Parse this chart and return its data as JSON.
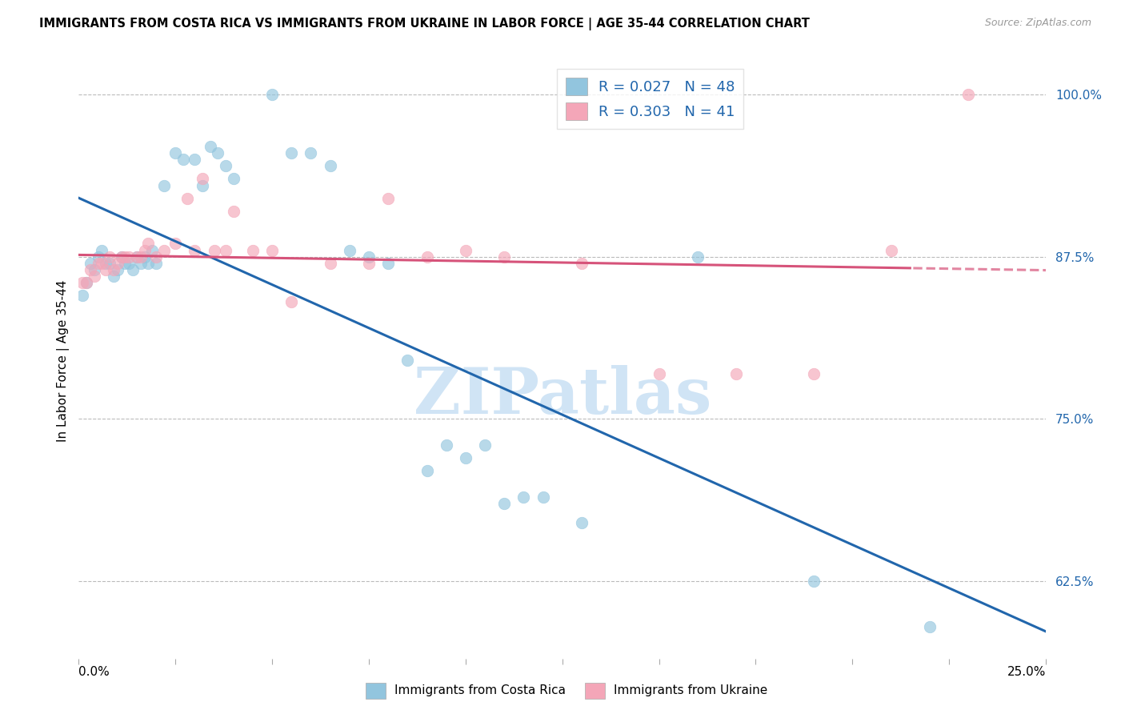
{
  "title": "IMMIGRANTS FROM COSTA RICA VS IMMIGRANTS FROM UKRAINE IN LABOR FORCE | AGE 35-44 CORRELATION CHART",
  "source": "Source: ZipAtlas.com",
  "ylabel": "In Labor Force | Age 35-44",
  "yticks": [
    0.625,
    0.75,
    0.875,
    1.0
  ],
  "ytick_labels": [
    "62.5%",
    "75.0%",
    "87.5%",
    "100.0%"
  ],
  "xmin": 0.0,
  "xmax": 0.25,
  "ymin": 0.565,
  "ymax": 1.025,
  "legend_r1": "R = 0.027",
  "legend_n1": "N = 48",
  "legend_r2": "R = 0.303",
  "legend_n2": "N = 41",
  "blue_color": "#92c5de",
  "pink_color": "#f4a6b8",
  "blue_line_color": "#2166ac",
  "pink_line_color": "#d6537a",
  "watermark_text": "ZIPatlas",
  "watermark_color": "#d0e4f5",
  "costa_rica_x": [
    0.001,
    0.002,
    0.003,
    0.004,
    0.005,
    0.006,
    0.007,
    0.008,
    0.009,
    0.01,
    0.011,
    0.012,
    0.013,
    0.014,
    0.015,
    0.016,
    0.017,
    0.018,
    0.019,
    0.02,
    0.022,
    0.025,
    0.027,
    0.03,
    0.032,
    0.034,
    0.036,
    0.038,
    0.04,
    0.05,
    0.055,
    0.06,
    0.065,
    0.07,
    0.075,
    0.08,
    0.085,
    0.09,
    0.095,
    0.1,
    0.105,
    0.11,
    0.115,
    0.12,
    0.13,
    0.16,
    0.19,
    0.22
  ],
  "costa_rica_y": [
    0.845,
    0.855,
    0.87,
    0.865,
    0.875,
    0.88,
    0.87,
    0.87,
    0.86,
    0.865,
    0.875,
    0.87,
    0.87,
    0.865,
    0.875,
    0.87,
    0.875,
    0.87,
    0.88,
    0.87,
    0.93,
    0.955,
    0.95,
    0.95,
    0.93,
    0.96,
    0.955,
    0.945,
    0.935,
    1.0,
    0.955,
    0.955,
    0.945,
    0.88,
    0.875,
    0.87,
    0.795,
    0.71,
    0.73,
    0.72,
    0.73,
    0.685,
    0.69,
    0.69,
    0.67,
    0.875,
    0.625,
    0.59
  ],
  "ukraine_x": [
    0.001,
    0.002,
    0.003,
    0.004,
    0.005,
    0.006,
    0.007,
    0.008,
    0.009,
    0.01,
    0.011,
    0.012,
    0.013,
    0.015,
    0.016,
    0.017,
    0.018,
    0.02,
    0.022,
    0.025,
    0.028,
    0.03,
    0.032,
    0.035,
    0.038,
    0.04,
    0.045,
    0.05,
    0.055,
    0.065,
    0.075,
    0.08,
    0.09,
    0.1,
    0.11,
    0.13,
    0.15,
    0.17,
    0.19,
    0.21,
    0.23
  ],
  "ukraine_y": [
    0.855,
    0.855,
    0.865,
    0.86,
    0.87,
    0.87,
    0.865,
    0.875,
    0.865,
    0.87,
    0.875,
    0.875,
    0.875,
    0.875,
    0.875,
    0.88,
    0.885,
    0.875,
    0.88,
    0.885,
    0.92,
    0.88,
    0.935,
    0.88,
    0.88,
    0.91,
    0.88,
    0.88,
    0.84,
    0.87,
    0.87,
    0.92,
    0.875,
    0.88,
    0.875,
    0.87,
    0.785,
    0.785,
    0.785,
    0.88,
    1.0
  ]
}
